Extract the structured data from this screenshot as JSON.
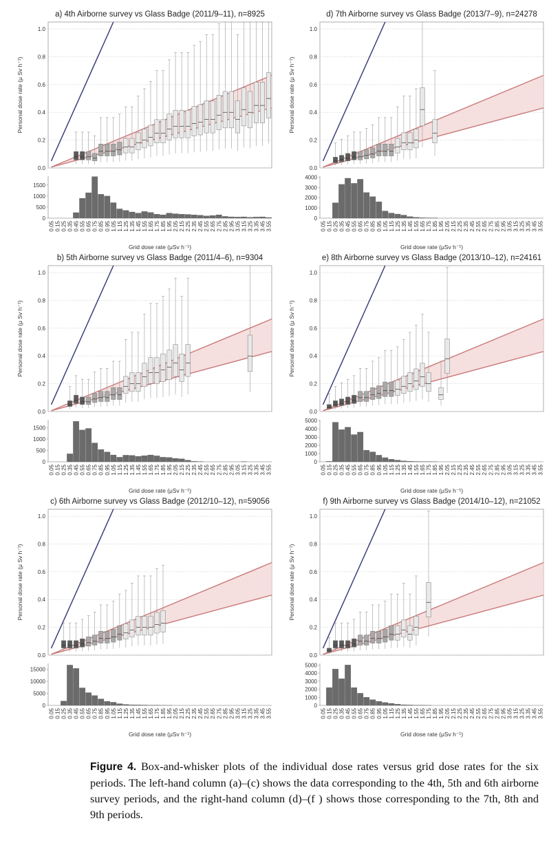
{
  "colors": {
    "line1": "#3b3f7a",
    "band": "#c97a7a",
    "bandFill": "#f5d9d9",
    "hist": "#6b6b6b"
  },
  "caption": {
    "label": "Figure 4.",
    "text": "Box-and-whisker plots of the individual dose rates versus grid dose rates for the six periods. The left-hand column (a)–(c) shows the data corresponding to the 4th, 5th and 6th airborne survey periods, and the right-hand column (d)–(f ) shows those corresponding to the 7th, 8th and 9th periods."
  },
  "chart_data": [
    {
      "id": "a",
      "type": "box",
      "title": "a) 4th Airborne survey vs Glass Badge (2011/9–11), n=8925",
      "ylabel": "Personal dose rate (μ Sv h⁻¹)",
      "xlabel": "Grid dose rate (μSv h⁻¹)",
      "ylim": [
        0,
        1.05
      ],
      "yticks": [
        0,
        0.2,
        0.4,
        0.6,
        0.8,
        1.0
      ],
      "x_categories": [
        "0.05",
        "0.15",
        "0.25",
        "0.35",
        "0.45",
        "0.55",
        "0.65",
        "0.75",
        "0.85",
        "0.95",
        "1.05",
        "1.15",
        "1.25",
        "1.35",
        "1.45",
        "1.55",
        "1.65",
        "1.75",
        "1.85",
        "1.95",
        "2.05",
        "2.15",
        "2.25",
        "2.35",
        "2.45",
        "2.55",
        "2.65",
        "2.75",
        "2.85",
        "2.95",
        "3.05",
        "3.15",
        "3.25",
        "3.35",
        "3.45",
        "3.55"
      ],
      "reference_line": {
        "slope": 1
      },
      "band": {
        "lower_slope": 0.12,
        "upper_slope": 0.185
      },
      "medians": [
        null,
        null,
        null,
        null,
        0.08,
        0.08,
        0.08,
        0.07,
        0.12,
        0.12,
        0.12,
        0.13,
        0.15,
        0.15,
        0.18,
        0.2,
        0.22,
        0.25,
        0.25,
        0.28,
        0.3,
        0.3,
        0.3,
        0.32,
        0.33,
        0.35,
        0.35,
        0.38,
        0.4,
        0.4,
        0.35,
        0.42,
        0.4,
        0.45,
        0.45,
        0.5
      ],
      "hist_yticks": [
        0,
        500,
        1000,
        1500
      ],
      "hist_ylim": [
        0,
        1900
      ],
      "hist": [
        0,
        0,
        0,
        0,
        250,
        900,
        1150,
        1880,
        1080,
        1000,
        700,
        420,
        350,
        280,
        230,
        300,
        260,
        180,
        150,
        230,
        200,
        180,
        170,
        150,
        130,
        100,
        120,
        150,
        80,
        60,
        50,
        60,
        40,
        50,
        60,
        30
      ]
    },
    {
      "id": "b",
      "type": "box",
      "title": "b) 5th Airborne survey vs Glass Badge (2011/4–6), n=9304",
      "ylabel": "Personal dose rate (μ Sv h⁻¹)",
      "xlabel": "Grid dose rate (μSv h⁻¹)",
      "ylim": [
        0,
        1.05
      ],
      "yticks": [
        0,
        0.2,
        0.4,
        0.6,
        0.8,
        1.0
      ],
      "x_categories": [
        "0.05",
        "0.15",
        "0.25",
        "0.35",
        "0.45",
        "0.55",
        "0.65",
        "0.75",
        "0.85",
        "0.95",
        "1.05",
        "1.15",
        "1.25",
        "1.35",
        "1.45",
        "1.55",
        "1.65",
        "1.75",
        "1.85",
        "1.95",
        "2.05",
        "2.15",
        "2.25",
        "2.35",
        "2.45",
        "2.55",
        "2.65",
        "2.75",
        "2.85",
        "2.95",
        "3.05",
        "3.15",
        "3.25",
        "3.35",
        "3.45",
        "3.55"
      ],
      "reference_line": {
        "slope": 1
      },
      "band": {
        "lower_slope": 0.12,
        "upper_slope": 0.185
      },
      "medians": [
        null,
        null,
        null,
        0.05,
        0.08,
        0.07,
        0.07,
        0.09,
        0.1,
        0.1,
        0.12,
        0.12,
        0.18,
        0.2,
        0.2,
        0.25,
        0.28,
        0.28,
        0.3,
        0.32,
        0.35,
        0.3,
        0.35,
        null,
        null,
        null,
        null,
        null,
        null,
        null,
        null,
        null,
        0.4,
        null,
        null,
        null
      ],
      "hist_yticks": [
        0,
        500,
        1000,
        1500
      ],
      "hist_ylim": [
        0,
        1850
      ],
      "hist": [
        0,
        0,
        0,
        350,
        1780,
        1400,
        1470,
        830,
        540,
        430,
        300,
        200,
        290,
        280,
        240,
        270,
        300,
        260,
        200,
        190,
        150,
        130,
        70,
        20,
        10,
        0,
        0,
        0,
        0,
        0,
        0,
        10,
        0,
        0,
        0,
        0
      ]
    },
    {
      "id": "c",
      "type": "box",
      "title": "c) 6th Airborne survey vs Glass Badge (2012/10–12), n=59056",
      "ylabel": "Personal dose rate (μ Sv h⁻¹)",
      "xlabel": "Grid dose rate (μSv h⁻¹)",
      "ylim": [
        0,
        1.05
      ],
      "yticks": [
        0,
        0.2,
        0.4,
        0.6,
        0.8,
        1.0
      ],
      "x_categories": [
        "0.05",
        "0.15",
        "0.25",
        "0.35",
        "0.45",
        "0.55",
        "0.65",
        "0.75",
        "0.85",
        "0.95",
        "1.05",
        "1.15",
        "1.25",
        "1.35",
        "1.45",
        "1.55",
        "1.65",
        "1.75",
        "1.85",
        "1.95",
        "2.05",
        "2.15",
        "2.25",
        "2.35",
        "2.45",
        "2.55",
        "2.65",
        "2.75",
        "2.85",
        "2.95",
        "3.05",
        "3.15",
        "3.25",
        "3.35",
        "3.45",
        "3.55"
      ],
      "reference_line": {
        "slope": 1
      },
      "band": {
        "lower_slope": 0.12,
        "upper_slope": 0.185
      },
      "medians": [
        null,
        null,
        0.07,
        0.07,
        0.07,
        0.08,
        0.09,
        0.1,
        0.12,
        0.12,
        0.13,
        0.15,
        0.16,
        0.18,
        0.2,
        0.2,
        0.2,
        0.22,
        0.23,
        null,
        null,
        null,
        null,
        null,
        null,
        null,
        null,
        null,
        null,
        null,
        null,
        null,
        null,
        null,
        null,
        null
      ],
      "hist_yticks": [
        0,
        5000,
        10000,
        15000
      ],
      "hist_ylim": [
        0,
        17500
      ],
      "hist": [
        0,
        0,
        1800,
        16800,
        15400,
        7300,
        5300,
        4100,
        2700,
        1700,
        1300,
        700,
        400,
        250,
        200,
        150,
        100,
        60,
        30,
        10,
        0,
        0,
        0,
        0,
        0,
        0,
        0,
        0,
        0,
        0,
        0,
        0,
        0,
        0,
        0,
        0
      ]
    },
    {
      "id": "d",
      "type": "box",
      "title": "d) 7th Airborne survey vs Glass Badge (2013/7–9), n=24278",
      "ylabel": "Personal dose rate (μ Sv h⁻¹)",
      "xlabel": "Grid dose rate (μSv h⁻¹)",
      "ylim": [
        0,
        1.05
      ],
      "yticks": [
        0,
        0.2,
        0.4,
        0.6,
        0.8,
        1.0
      ],
      "x_categories": [
        "0.05",
        "0.15",
        "0.25",
        "0.35",
        "0.45",
        "0.55",
        "0.65",
        "0.75",
        "0.85",
        "0.95",
        "1.05",
        "1.15",
        "1.25",
        "1.35",
        "1.45",
        "1.55",
        "1.65",
        "1.75",
        "1.85",
        "1.95",
        "2.05",
        "2.15",
        "2.25",
        "2.35",
        "2.45",
        "2.55",
        "2.65",
        "2.75",
        "2.85",
        "2.95",
        "3.05",
        "3.15",
        "3.25",
        "3.35",
        "3.45",
        "3.55"
      ],
      "reference_line": {
        "slope": 1
      },
      "band": {
        "lower_slope": 0.12,
        "upper_slope": 0.185
      },
      "medians": [
        null,
        null,
        0.05,
        0.06,
        0.07,
        0.08,
        0.08,
        0.09,
        0.1,
        0.12,
        0.12,
        0.12,
        0.15,
        0.18,
        0.18,
        0.2,
        0.42,
        null,
        0.25,
        null,
        null,
        null,
        null,
        null,
        null,
        null,
        null,
        null,
        null,
        null,
        null,
        null,
        null,
        null,
        null,
        null
      ],
      "hist_yticks": [
        0,
        1000,
        2000,
        3000,
        4000
      ],
      "hist_ylim": [
        0,
        4100
      ],
      "hist": [
        0,
        0,
        1500,
        3300,
        3900,
        3400,
        3800,
        2500,
        2100,
        1600,
        700,
        500,
        400,
        300,
        150,
        80,
        40,
        30,
        20,
        0,
        0,
        0,
        0,
        0,
        0,
        0,
        0,
        0,
        0,
        0,
        0,
        0,
        0,
        0,
        0,
        0
      ]
    },
    {
      "id": "e",
      "type": "box",
      "title": "e) 8th Airborne survey vs Glass Badge (2013/10–12), n=24161",
      "ylabel": "Personal dose rate (μ Sv h⁻¹)",
      "xlabel": "Grid dose rate (μSv h⁻¹)",
      "ylim": [
        0,
        1.05
      ],
      "yticks": [
        0,
        0.2,
        0.4,
        0.6,
        0.8,
        1.0
      ],
      "x_categories": [
        "0.05",
        "0.15",
        "0.25",
        "0.35",
        "0.45",
        "0.55",
        "0.65",
        "0.75",
        "0.85",
        "0.95",
        "1.05",
        "1.15",
        "1.25",
        "1.35",
        "1.45",
        "1.55",
        "1.65",
        "1.75",
        "1.85",
        "1.95",
        "2.05",
        "2.15",
        "2.25",
        "2.35",
        "2.45",
        "2.55",
        "2.65",
        "2.75",
        "2.85",
        "2.95",
        "3.05",
        "3.15",
        "3.25",
        "3.35",
        "3.45",
        "3.55"
      ],
      "reference_line": {
        "slope": 1
      },
      "band": {
        "lower_slope": 0.12,
        "upper_slope": 0.185
      },
      "medians": [
        null,
        0.03,
        0.05,
        0.06,
        0.07,
        0.08,
        0.1,
        0.1,
        0.12,
        0.13,
        0.15,
        0.15,
        0.16,
        0.18,
        0.2,
        0.22,
        0.25,
        0.2,
        null,
        0.12,
        0.38,
        null,
        null,
        null,
        null,
        null,
        null,
        null,
        null,
        null,
        null,
        null,
        null,
        null,
        null,
        null
      ],
      "hist_yticks": [
        0,
        1000,
        2000,
        3000,
        4000,
        5000
      ],
      "hist_ylim": [
        0,
        5100
      ],
      "hist": [
        0,
        50,
        4800,
        3900,
        4200,
        3300,
        3600,
        1400,
        1200,
        800,
        500,
        300,
        200,
        100,
        60,
        40,
        30,
        20,
        10,
        0,
        0,
        0,
        0,
        0,
        0,
        0,
        0,
        0,
        0,
        0,
        0,
        0,
        0,
        0,
        0,
        0
      ]
    },
    {
      "id": "f",
      "type": "box",
      "title": "f) 9th Airborne survey vs Glass Badge (2014/10–12), n=21052",
      "ylabel": "Personal dose rate (μ Sv h⁻¹)",
      "xlabel": "Grid dose rate (μSv h⁻¹)",
      "ylim": [
        0,
        1.05
      ],
      "yticks": [
        0,
        0.2,
        0.4,
        0.6,
        0.8,
        1.0
      ],
      "x_categories": [
        "0.05",
        "0.15",
        "0.25",
        "0.35",
        "0.45",
        "0.55",
        "0.65",
        "0.75",
        "0.85",
        "0.95",
        "1.05",
        "1.15",
        "1.25",
        "1.35",
        "1.45",
        "1.55",
        "1.65",
        "1.75",
        "1.85",
        "1.95",
        "2.05",
        "2.15",
        "2.25",
        "2.35",
        "2.45",
        "2.55",
        "2.65",
        "2.75",
        "2.85",
        "2.95",
        "3.05",
        "3.15",
        "3.25",
        "3.35",
        "3.45",
        "3.55"
      ],
      "reference_line": {
        "slope": 1
      },
      "band": {
        "lower_slope": 0.12,
        "upper_slope": 0.185
      },
      "medians": [
        null,
        0.03,
        0.07,
        0.07,
        0.07,
        0.08,
        0.1,
        0.1,
        0.12,
        0.12,
        0.13,
        0.15,
        0.15,
        0.18,
        0.15,
        0.2,
        null,
        0.38,
        null,
        null,
        null,
        null,
        null,
        null,
        null,
        null,
        null,
        null,
        null,
        null,
        null,
        null,
        null,
        null,
        null,
        null
      ],
      "hist_yticks": [
        0,
        1000,
        2000,
        3000,
        4000,
        5000
      ],
      "hist_ylim": [
        0,
        5200
      ],
      "hist": [
        0,
        2200,
        4500,
        3300,
        5000,
        2200,
        1500,
        1000,
        700,
        500,
        350,
        250,
        150,
        80,
        50,
        30,
        20,
        10,
        0,
        0,
        0,
        0,
        0,
        0,
        0,
        0,
        0,
        0,
        0,
        0,
        0,
        0,
        0,
        0,
        0,
        0
      ]
    }
  ]
}
